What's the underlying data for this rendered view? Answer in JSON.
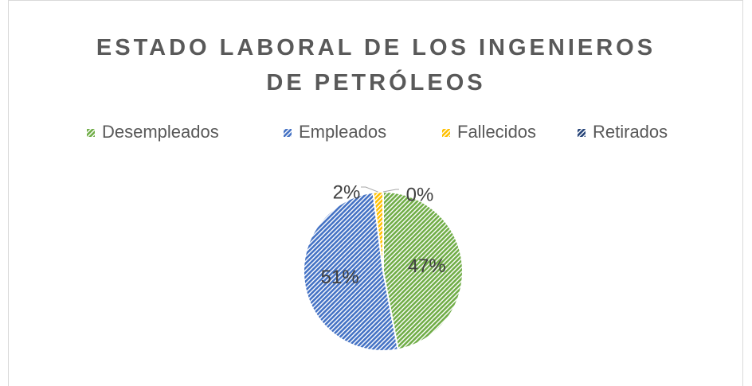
{
  "chart_data": {
    "type": "pie",
    "title": "ESTADO LABORAL DE LOS INGENIEROS DE PETRÓLEOS",
    "categories": [
      "Desempleados",
      "Empleados",
      "Fallecidos",
      "Retirados"
    ],
    "values": [
      47,
      51,
      2,
      0
    ],
    "value_labels": [
      "47%",
      "51%",
      "2%",
      "0%"
    ],
    "colors": [
      "#70ad47",
      "#4472c4",
      "#ffc000",
      "#264478"
    ],
    "legend": "top"
  }
}
